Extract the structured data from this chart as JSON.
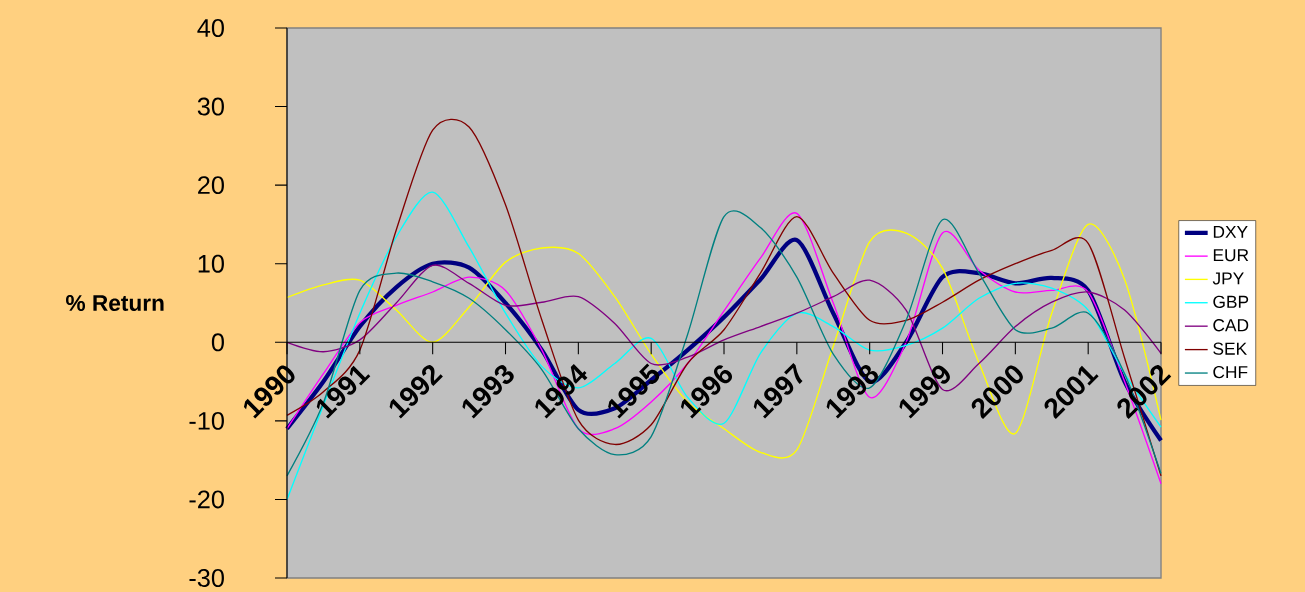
{
  "chart_data": {
    "type": "line",
    "ylabel": "% Return",
    "x": [
      1990,
      1990.5,
      1991,
      1991.5,
      1992,
      1992.5,
      1993,
      1993.5,
      1994,
      1994.5,
      1995,
      1995.5,
      1996,
      1996.5,
      1997,
      1997.5,
      1998,
      1998.5,
      1999,
      1999.5,
      2000,
      2000.5,
      2001,
      2001.5,
      2002
    ],
    "xlim": [
      1990,
      2002
    ],
    "xticks": [
      1990,
      1991,
      1992,
      1993,
      1994,
      1995,
      1996,
      1997,
      1998,
      1999,
      2000,
      2001,
      2002
    ],
    "ylim": [
      -30,
      40
    ],
    "yticks": [
      -30,
      -20,
      -10,
      0,
      10,
      20,
      30,
      40
    ],
    "grid": false,
    "legend": "right",
    "marker": "none",
    "line_style": "solid",
    "series": [
      {
        "name": "DXY",
        "color": "#000080",
        "values": [
          -11,
          -5,
          2,
          7,
          10,
          9.5,
          5,
          -1,
          -8.6,
          -8.4,
          -4.8,
          -1,
          3.2,
          8,
          13,
          3.7,
          -5,
          0,
          8.3,
          8.8,
          7.5,
          8.2,
          6.6,
          -5,
          -12.5
        ]
      },
      {
        "name": "EUR",
        "color": "#ff00ff",
        "values": [
          -11,
          -4,
          2.5,
          4.7,
          6.4,
          8.3,
          6.6,
          -1,
          -11,
          -11,
          -7.6,
          -2.7,
          4,
          10.7,
          16.4,
          5,
          -7,
          0,
          13.9,
          9.2,
          6.4,
          6.6,
          6.4,
          -5,
          -18
        ]
      },
      {
        "name": "JPY",
        "color": "#ffff00",
        "values": [
          5.7,
          7.3,
          7.9,
          4.1,
          0,
          4.5,
          10.2,
          12,
          11.3,
          5.8,
          -1.5,
          -7.6,
          -11,
          -14,
          -13.7,
          -0.5,
          12.8,
          13.9,
          9.4,
          -2.6,
          -11.6,
          3.7,
          15,
          8,
          -9.9
        ]
      },
      {
        "name": "GBP",
        "color": "#00ffff",
        "values": [
          -20,
          -8,
          3.7,
          13.4,
          19.1,
          12.1,
          3.7,
          -3.1,
          -5.8,
          -2.7,
          0.5,
          -7,
          -10.3,
          -1.4,
          3.7,
          2,
          -1,
          -0.4,
          1.8,
          5.6,
          7.5,
          6.9,
          4.1,
          -4,
          -10.8
        ]
      },
      {
        "name": "CAD",
        "color": "#800080",
        "values": [
          0,
          -1.2,
          0.3,
          5,
          9.8,
          7.5,
          4.7,
          5.1,
          5.8,
          2.4,
          -2.7,
          -1.9,
          0.3,
          2,
          3.7,
          5.8,
          7.9,
          4.1,
          -6,
          -2.7,
          2,
          5.1,
          6.4,
          4.1,
          -1.4
        ]
      },
      {
        "name": "SEK",
        "color": "#800000",
        "values": [
          -9.3,
          -6.3,
          -1,
          14.3,
          27,
          27.4,
          17.5,
          2.8,
          -9.9,
          -13,
          -10.5,
          -2.7,
          1.6,
          8.8,
          16,
          8.8,
          2.8,
          2.8,
          5.1,
          7.9,
          10,
          11.7,
          12.6,
          -2,
          -17
        ]
      },
      {
        "name": "CHF",
        "color": "#008080",
        "values": [
          -17,
          -7.7,
          6.6,
          8.8,
          7.7,
          5.6,
          1.6,
          -3.5,
          -11,
          -14.3,
          -12,
          1,
          16,
          14.6,
          8.3,
          -1.5,
          -5.8,
          2.8,
          15.6,
          8.8,
          1.6,
          1.8,
          3.7,
          -4,
          -16.7
        ]
      }
    ]
  }
}
